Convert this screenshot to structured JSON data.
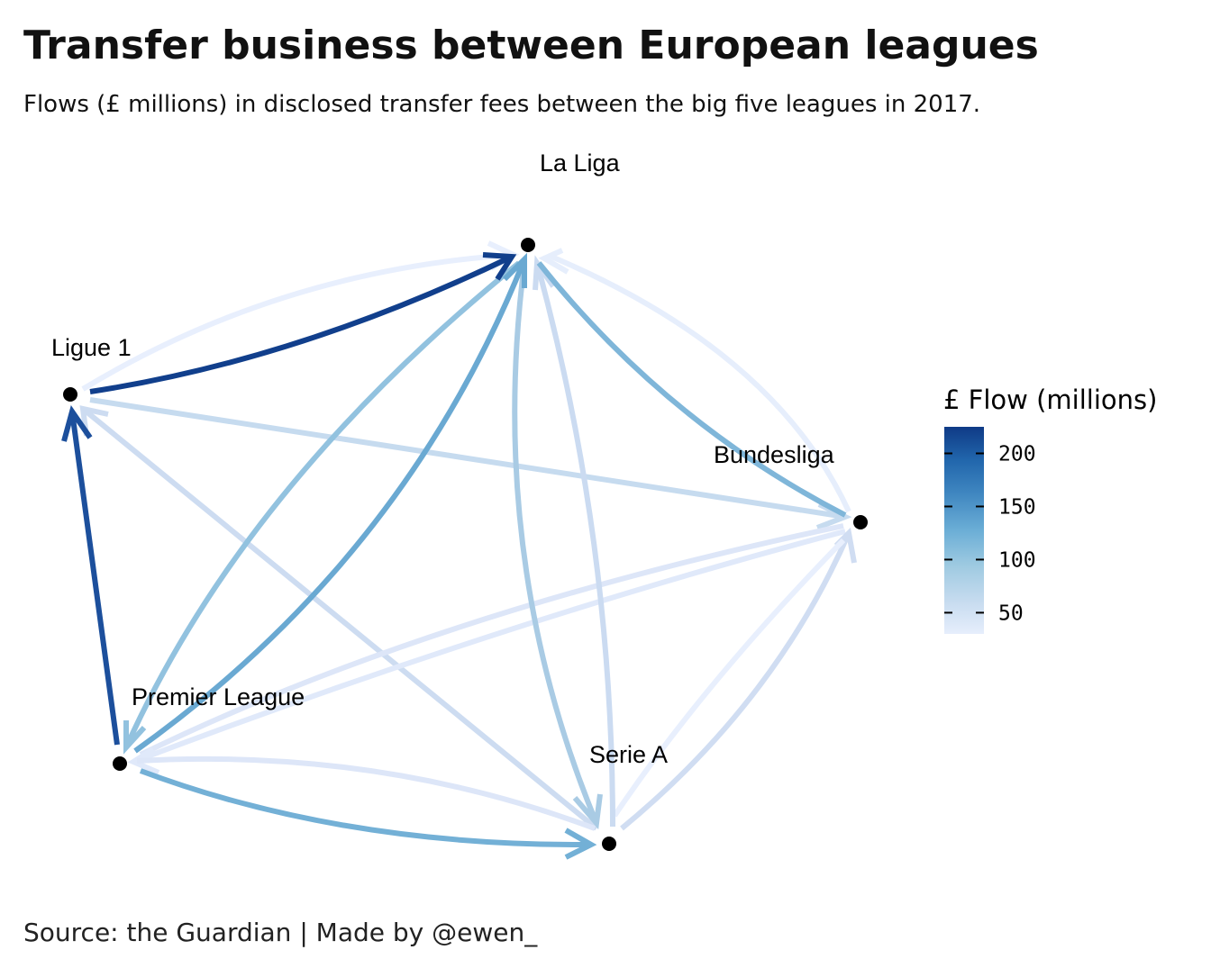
{
  "title": "Transfer business between European leagues",
  "subtitle": "Flows (£ millions) in disclosed transfer fees between the big five leagues in 2017.",
  "caption": "Source: the Guardian   |   Made by @ewen_",
  "nodes": [
    {
      "id": "laliga",
      "label": "La Liga"
    },
    {
      "id": "ligue1",
      "label": "Ligue 1"
    },
    {
      "id": "bundesliga",
      "label": "Bundesliga"
    },
    {
      "id": "premier",
      "label": "Premier League"
    },
    {
      "id": "seriea",
      "label": "Serie A"
    }
  ],
  "legend": {
    "title": "£ Flow (millions)",
    "ticks": [
      "200",
      "150",
      "100",
      "50"
    ],
    "tick_values": [
      200,
      150,
      100,
      50
    ],
    "range": [
      30,
      225
    ],
    "colors": [
      "#e6eefc",
      "#c6dbef",
      "#9ecae1",
      "#6baed6",
      "#3f86c0",
      "#2166ac",
      "#0f3a86"
    ]
  }
}
